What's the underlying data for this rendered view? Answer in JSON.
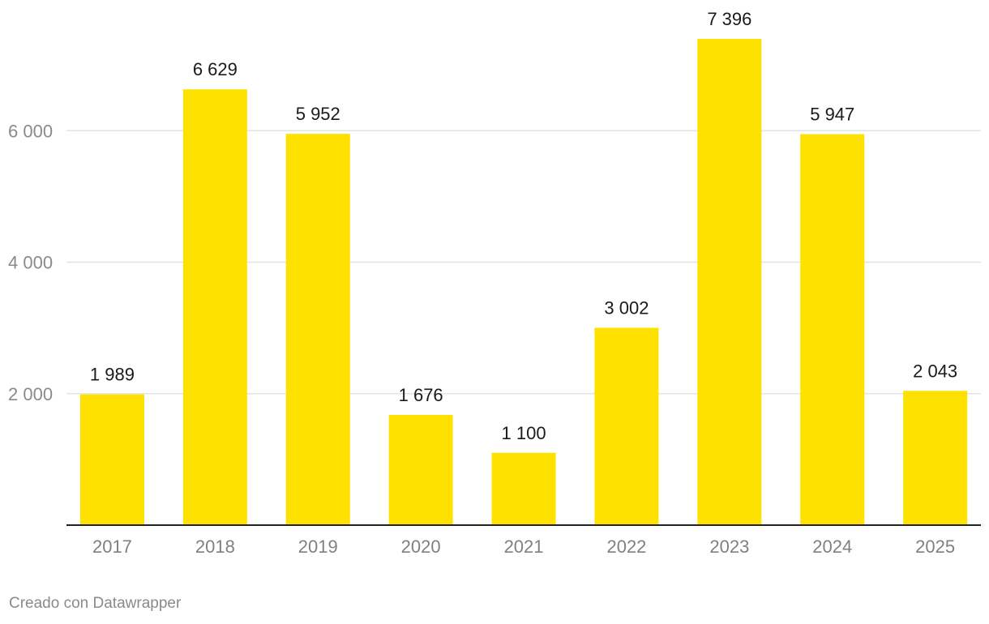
{
  "chart_data": {
    "type": "bar",
    "title": "",
    "xlabel": "",
    "ylabel": "",
    "categories": [
      "2017",
      "2018",
      "2019",
      "2020",
      "2021",
      "2022",
      "2023",
      "2024",
      "2025"
    ],
    "values": [
      1989,
      6629,
      5952,
      1676,
      1100,
      3002,
      7396,
      5947,
      2043
    ],
    "value_labels": [
      "1 989",
      "6 629",
      "5 952",
      "1 676",
      "1 100",
      "3 002",
      "7 396",
      "5 947",
      "2 043"
    ],
    "ylim": [
      0,
      7396
    ],
    "yticks": [
      2000,
      4000,
      6000
    ],
    "ytick_labels": [
      "2 000",
      "4 000",
      "6 000"
    ],
    "grid": true,
    "legend": "none",
    "bar_color": "#FFE100"
  },
  "footer": {
    "credit": "Creado con Datawrapper"
  }
}
